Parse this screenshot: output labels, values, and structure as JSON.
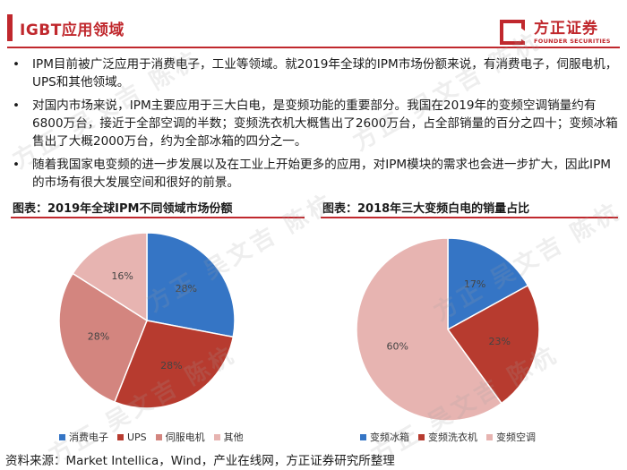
{
  "header": {
    "title": "IGBT应用领域",
    "logo_cn": "方正证券",
    "logo_en": "FOUNDER SECURITIES"
  },
  "bullets": [
    "IPM目前被广泛应用于消费电子，工业等领域。就2019年全球的IPM市场份额来说，有消费电子，伺服电机，UPS和其他领域。",
    "对国内市场来说，IPM主要应用于三大白电，是变频功能的重要部分。我国在2019年的变频空调销量约有6800万台，接近于全部空调的半数；变频洗衣机大概售出了2600万台，占全部销量的百分之四十；变频冰箱售出了大概2000万台，约为全部冰箱的四分之一。",
    "随着我国家电变频的进一步发展以及在工业上开始更多的应用，对IPM模块的需求也会进一步扩大，因此IPM的市场有很大发展空间和很好的前景。"
  ],
  "bullet_marker": "•",
  "watermark": "方正 吴文吉 陈杭",
  "source": "资料来源：Market Intellica，Wind，产业在线网，方正证券研究所整理",
  "chart_data": [
    {
      "type": "pie",
      "title": "图表：2019年全球IPM不同领域市场份额",
      "categories": [
        "消费电子",
        "UPS",
        "伺服电机",
        "其他"
      ],
      "values": [
        28,
        28,
        28,
        16
      ],
      "labels": [
        "28%",
        "28%",
        "28%",
        "16%"
      ],
      "colors": [
        "#3575c5",
        "#b73b2f",
        "#d3857f",
        "#e7b4b1"
      ],
      "legend": "bottom"
    },
    {
      "type": "pie",
      "title": "图表：2018年三大变频白电的销量占比",
      "categories": [
        "变频冰箱",
        "变频洗衣机",
        "变频空调"
      ],
      "values": [
        17,
        23,
        60
      ],
      "labels": [
        "17%",
        "23%",
        "60%"
      ],
      "colors": [
        "#3575c5",
        "#b73b2f",
        "#e7b4b1"
      ],
      "legend": "bottom"
    }
  ]
}
